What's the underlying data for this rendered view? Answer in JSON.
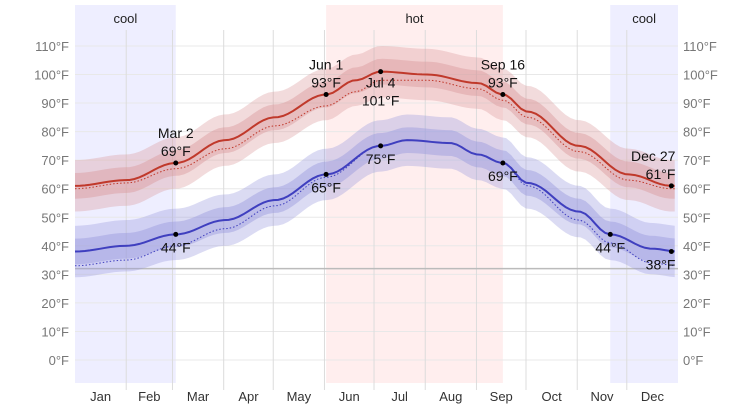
{
  "chart_data": {
    "type": "area",
    "y_axis": {
      "min": 0,
      "max": 110,
      "step": 10,
      "unit": "°F",
      "ticks": [
        "0°F",
        "10°F",
        "20°F",
        "30°F",
        "40°F",
        "50°F",
        "60°F",
        "70°F",
        "80°F",
        "90°F",
        "100°F",
        "110°F"
      ],
      "sides": [
        "left",
        "right"
      ]
    },
    "x_axis": {
      "categories": [
        "Jan",
        "Feb",
        "Mar",
        "Apr",
        "May",
        "Jun",
        "Jul",
        "Aug",
        "Sep",
        "Oct",
        "Nov",
        "Dec"
      ]
    },
    "grid": true,
    "freezing_line": 32,
    "seasons": [
      {
        "label": "cool",
        "start_day": 0,
        "end_day": 61,
        "color": "#eeeeff"
      },
      {
        "label": "hot",
        "start_day": 152,
        "end_day": 259,
        "color": "#ffeeee"
      },
      {
        "label": "cool",
        "start_day": 324,
        "end_day": 365,
        "color": "#eeeeff"
      }
    ],
    "colors": {
      "high": "#c0392b",
      "low": "#3f3fbf",
      "high_band": "#d9999b",
      "low_band": "#9999dd"
    },
    "series": [
      {
        "key": "high",
        "days": [
          0,
          31,
          61,
          91,
          121,
          152,
          170,
          185,
          213,
          244,
          259,
          274,
          305,
          335,
          361,
          365
        ],
        "values": [
          61,
          63,
          69,
          77,
          85,
          93,
          98,
          101,
          100,
          97,
          93,
          87,
          75,
          65,
          61,
          61
        ]
      },
      {
        "key": "low",
        "days": [
          0,
          31,
          61,
          91,
          121,
          152,
          185,
          201,
          227,
          244,
          259,
          274,
          305,
          324,
          349,
          365
        ],
        "values": [
          38,
          40,
          44,
          49,
          56,
          65,
          75,
          77,
          76,
          72,
          69,
          62,
          52,
          44,
          39,
          38
        ]
      },
      {
        "key": "high_perceived",
        "days": [
          0,
          31,
          61,
          91,
          121,
          152,
          170,
          185,
          213,
          244,
          259,
          274,
          305,
          335,
          361,
          365
        ],
        "values": [
          60,
          62,
          67,
          74,
          82,
          89,
          94,
          98,
          98,
          95,
          91,
          85,
          73,
          63,
          60,
          60
        ]
      },
      {
        "key": "low_perceived",
        "days": [
          0,
          31,
          61,
          91,
          121,
          152,
          185,
          201,
          227,
          244,
          259,
          274,
          305,
          324,
          349,
          365
        ],
        "values": [
          33,
          35,
          40,
          46,
          54,
          64,
          75,
          77,
          76,
          72,
          69,
          61,
          49,
          41,
          34,
          33
        ]
      }
    ],
    "bands": {
      "p25_p75_halfwidth": 4.5,
      "p10_p90_halfwidth": 9
    },
    "annotations": [
      {
        "series": "high",
        "day": 61,
        "date": "Mar 2",
        "value": "69°F",
        "v": 69,
        "pos": "above"
      },
      {
        "series": "low",
        "day": 61,
        "date": "",
        "value": "44°F",
        "v": 44,
        "pos": "below"
      },
      {
        "series": "high",
        "day": 152,
        "date": "Jun 1",
        "value": "93°F",
        "v": 93,
        "pos": "above"
      },
      {
        "series": "low",
        "day": 152,
        "date": "",
        "value": "65°F",
        "v": 65,
        "pos": "below"
      },
      {
        "series": "high",
        "day": 185,
        "date": "Jul 4",
        "value": "101°F",
        "v": 101,
        "pos": "below"
      },
      {
        "series": "low",
        "day": 185,
        "date": "",
        "value": "75°F",
        "v": 75,
        "pos": "below"
      },
      {
        "series": "high",
        "day": 259,
        "date": "Sep 16",
        "value": "93°F",
        "v": 93,
        "pos": "above"
      },
      {
        "series": "low",
        "day": 259,
        "date": "",
        "value": "69°F",
        "v": 69,
        "pos": "below"
      },
      {
        "series": "low",
        "day": 324,
        "date": "",
        "value": "44°F",
        "v": 44,
        "pos": "below"
      },
      {
        "series": "high",
        "day": 361,
        "date": "Dec 27",
        "value": "61°F",
        "v": 61,
        "pos": "above"
      },
      {
        "series": "low",
        "day": 361,
        "date": "",
        "value": "38°F",
        "v": 38,
        "pos": "below"
      }
    ]
  }
}
